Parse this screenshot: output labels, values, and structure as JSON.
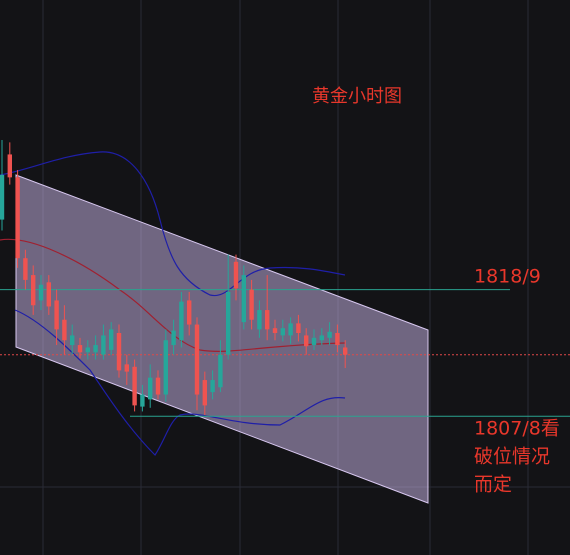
{
  "chart_data": {
    "type": "candlestick",
    "title": "黄金小时图",
    "annotations": [
      "1818/9",
      "1807/8看",
      "破位情况",
      "而定"
    ],
    "ylim": [
      1796,
      1842
    ],
    "levels": [
      1818,
      1807.5
    ],
    "last_price": 1812.6,
    "up_color": "#26a69a",
    "down_color": "#ef5350",
    "open": [
      1823.8,
      1829.2,
      1827.3,
      1820.6,
      1819.2,
      1817.1,
      1818.6,
      1817.1,
      1815.5,
      1813.4,
      1813.4,
      1812.8,
      1812.8,
      1812.6,
      1813.0,
      1814.4,
      1811.8,
      1811.6,
      1808.3,
      1808.9,
      1810.7,
      1809.3,
      1813.4,
      1813.8,
      1817.1,
      1815.1,
      1810.5,
      1809.5,
      1809.9,
      1812.6,
      1820.3,
      1815.3,
      1818.0,
      1814.7,
      1816.3,
      1814.8,
      1814.2,
      1814.2,
      1815.2,
      1814.2,
      1813.4,
      1813.8,
      1814.0,
      1814.4,
      1813.2
    ],
    "high": [
      1830.4,
      1830.2,
      1827.9,
      1821.3,
      1820.0,
      1819.2,
      1819.2,
      1818.0,
      1816.7,
      1815.1,
      1814.0,
      1813.8,
      1814.2,
      1815.1,
      1815.3,
      1815.1,
      1812.6,
      1812.2,
      1810.1,
      1811.8,
      1811.3,
      1814.7,
      1815.5,
      1817.8,
      1817.8,
      1815.7,
      1811.2,
      1811.3,
      1813.8,
      1820.9,
      1820.9,
      1820.0,
      1818.8,
      1817.1,
      1819.2,
      1815.5,
      1815.5,
      1815.7,
      1815.9,
      1814.8,
      1814.7,
      1814.8,
      1815.3,
      1815.1,
      1813.8
    ],
    "low": [
      1822.9,
      1826.7,
      1819.8,
      1818.0,
      1815.9,
      1816.3,
      1815.9,
      1813.4,
      1812.6,
      1812.6,
      1812.3,
      1812.2,
      1812.2,
      1812.2,
      1812.6,
      1810.7,
      1810.1,
      1807.9,
      1807.9,
      1808.2,
      1808.9,
      1808.7,
      1812.6,
      1813.2,
      1814.2,
      1808.0,
      1807.6,
      1808.9,
      1809.5,
      1812.2,
      1817.1,
      1814.7,
      1814.7,
      1814.0,
      1813.8,
      1813.8,
      1813.7,
      1813.5,
      1813.7,
      1812.6,
      1813.0,
      1813.4,
      1813.4,
      1812.8,
      1811.5
    ],
    "close": [
      1827.5,
      1827.3,
      1820.6,
      1818.8,
      1816.7,
      1818.4,
      1816.6,
      1814.7,
      1813.8,
      1814.2,
      1812.8,
      1813.2,
      1813.4,
      1814.2,
      1814.7,
      1811.3,
      1811.2,
      1808.4,
      1809.3,
      1810.7,
      1809.3,
      1813.8,
      1814.6,
      1817.0,
      1815.1,
      1809.3,
      1808.4,
      1810.5,
      1812.6,
      1817.8,
      1818.1,
      1819.2,
      1815.5,
      1816.3,
      1814.7,
      1814.4,
      1814.8,
      1815.2,
      1814.4,
      1813.3,
      1814.0,
      1814.2,
      1814.5,
      1813.4,
      1812.6
    ]
  }
}
